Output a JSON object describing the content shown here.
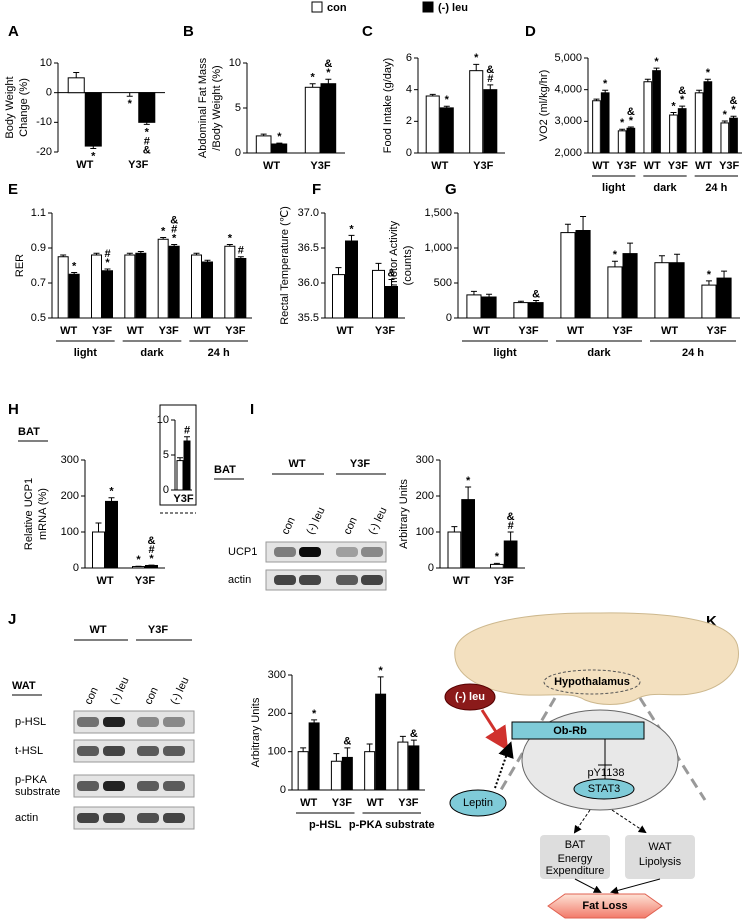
{
  "legend": [
    {
      "name": "con",
      "color": "#ffffff"
    },
    {
      "name": "(-) leu",
      "color": "#000000"
    }
  ],
  "chart_data": [
    {
      "type": "bar",
      "panel": "A",
      "ylabel": [
        "Body  Weight",
        "Change (%)"
      ],
      "categories": [
        "WT",
        "Y3F"
      ],
      "ylim": [
        -20,
        10
      ],
      "yticks": [
        -20,
        -10,
        0,
        10
      ],
      "series": [
        {
          "values": [
            5,
            0
          ],
          "errors": [
            1.8,
            1.2
          ],
          "annotations": [
            null,
            [
              "*"
            ]
          ]
        },
        {
          "values": [
            -18,
            -10
          ],
          "errors": [
            0.8,
            0.7
          ],
          "annotations": [
            [
              "*"
            ],
            [
              "*",
              "#",
              "&"
            ]
          ]
        }
      ]
    },
    {
      "type": "bar",
      "panel": "B",
      "ylabel": [
        "Abdominal Fat Mass",
        "/Body Weight (%)"
      ],
      "categories": [
        "WT",
        "Y3F"
      ],
      "ylim": [
        0,
        10
      ],
      "yticks": [
        0,
        5,
        10
      ],
      "series": [
        {
          "values": [
            1.9,
            7.3
          ],
          "errors": [
            0.2,
            0.4
          ],
          "annotations": [
            null,
            [
              "*"
            ]
          ]
        },
        {
          "values": [
            1.0,
            7.7
          ],
          "errors": [
            0.1,
            0.5
          ],
          "annotations": [
            [
              "*"
            ],
            [
              "&",
              "*"
            ]
          ]
        }
      ]
    },
    {
      "type": "bar",
      "panel": "C",
      "ylabel": [
        "Food Intake (g/day)"
      ],
      "categories": [
        "WT",
        "Y3F"
      ],
      "ylim": [
        0,
        6
      ],
      "yticks": [
        0,
        2,
        4,
        6
      ],
      "series": [
        {
          "values": [
            3.6,
            5.2
          ],
          "errors": [
            0.1,
            0.4
          ],
          "annotations": [
            null,
            [
              "*"
            ]
          ]
        },
        {
          "values": [
            2.85,
            4.0
          ],
          "errors": [
            0.1,
            0.3
          ],
          "annotations": [
            [
              "*"
            ],
            [
              "&",
              "#"
            ]
          ]
        }
      ]
    },
    {
      "type": "bar",
      "panel": "D",
      "ylabel": [
        "VO2 (ml/kg/hr)"
      ],
      "categories": [
        "WT",
        "Y3F",
        "WT",
        "Y3F",
        "WT",
        "Y3F"
      ],
      "groups": [
        "light",
        "dark",
        "24 h"
      ],
      "ylim": [
        2000,
        5000
      ],
      "yticks": [
        {
          "value": 2000,
          "label": "2,000"
        },
        {
          "value": 3000,
          "label": "3,000"
        },
        {
          "value": 4000,
          "label": "4,000"
        },
        {
          "value": 5000,
          "label": "5,000"
        }
      ],
      "series": [
        {
          "values": [
            3650,
            2700,
            4250,
            3200,
            3900,
            2950
          ],
          "errors": [
            50,
            50,
            80,
            80,
            80,
            60
          ],
          "annotations": [
            null,
            [
              "*"
            ],
            null,
            [
              "*"
            ],
            null,
            [
              "*"
            ]
          ]
        },
        {
          "values": [
            3900,
            2780,
            4600,
            3400,
            4250,
            3100
          ],
          "errors": [
            80,
            40,
            80,
            80,
            80,
            60
          ],
          "annotations": [
            [
              "*"
            ],
            [
              "&",
              "*"
            ],
            [
              "*"
            ],
            [
              "&",
              "*"
            ],
            [
              "*"
            ],
            [
              "&",
              "*"
            ]
          ]
        }
      ]
    },
    {
      "type": "bar",
      "panel": "E",
      "ylabel": [
        "RER"
      ],
      "categories": [
        "WT",
        "Y3F",
        "WT",
        "Y3F",
        "WT",
        "Y3F"
      ],
      "groups": [
        "light",
        "dark",
        "24 h"
      ],
      "ylim": [
        0.5,
        1.1
      ],
      "yticks": [
        0.5,
        0.7,
        0.9,
        1.1
      ],
      "series": [
        {
          "values": [
            0.85,
            0.86,
            0.86,
            0.95,
            0.86,
            0.91
          ],
          "errors": [
            0.01,
            0.01,
            0.01,
            0.01,
            0.01,
            0.01
          ],
          "annotations": [
            null,
            null,
            null,
            [
              "*"
            ],
            null,
            [
              "*"
            ]
          ]
        },
        {
          "values": [
            0.75,
            0.77,
            0.87,
            0.91,
            0.82,
            0.84
          ],
          "errors": [
            0.01,
            0.01,
            0.01,
            0.01,
            0.01,
            0.01
          ],
          "annotations": [
            [
              "*"
            ],
            [
              "#",
              "*"
            ],
            null,
            [
              "&",
              "#",
              "*"
            ],
            null,
            [
              "#"
            ]
          ]
        }
      ]
    },
    {
      "type": "bar",
      "panel": "F",
      "ylabel": [
        "Rectal Temperature (℃)"
      ],
      "categories": [
        "WT",
        "Y3F"
      ],
      "ylim": [
        35.5,
        37.0
      ],
      "yticks": [
        35.5,
        {
          "value": 36,
          "label": "36.0"
        },
        36.5,
        {
          "value": 37,
          "label": "37.0"
        }
      ],
      "series": [
        {
          "values": [
            36.12,
            36.18
          ],
          "errors": [
            0.1,
            0.1
          ],
          "annotations": [
            null,
            null
          ]
        },
        {
          "values": [
            36.6,
            35.95
          ],
          "errors": [
            0.08,
            0.1
          ],
          "annotations": [
            [
              "*"
            ],
            [
              "&"
            ]
          ]
        }
      ]
    },
    {
      "type": "bar",
      "panel": "G",
      "ylabel": [
        "Locomotor Activity",
        "(counts)"
      ],
      "categories": [
        "WT",
        "Y3F",
        "WT",
        "Y3F",
        "WT",
        "Y3F"
      ],
      "groups": [
        "light",
        "dark",
        "24 h"
      ],
      "ylim": [
        0,
        1500
      ],
      "yticks": [
        0,
        500,
        {
          "value": 1000,
          "label": "1,000"
        },
        {
          "value": 1500,
          "label": "1,500"
        }
      ],
      "series": [
        {
          "values": [
            330,
            220,
            1220,
            730,
            790,
            470
          ],
          "errors": [
            50,
            20,
            120,
            80,
            100,
            60
          ],
          "annotations": [
            null,
            null,
            null,
            [
              "*"
            ],
            null,
            [
              "*"
            ]
          ]
        },
        {
          "values": [
            300,
            220,
            1250,
            920,
            790,
            570
          ],
          "errors": [
            40,
            30,
            200,
            150,
            120,
            100
          ],
          "annotations": [
            null,
            [
              "&"
            ],
            null,
            null,
            null,
            null
          ]
        }
      ]
    },
    {
      "type": "bar",
      "panel": "H",
      "tissue": "BAT",
      "ylabel": [
        "Relative UCP1",
        "mRNA (%)"
      ],
      "categories": [
        "WT",
        "Y3F"
      ],
      "ylim": [
        0,
        300
      ],
      "yticks": [
        0,
        100,
        200,
        300
      ],
      "series": [
        {
          "values": [
            100,
            4
          ],
          "errors": [
            25,
            1
          ],
          "annotations": [
            null,
            [
              "*"
            ]
          ]
        },
        {
          "values": [
            185,
            7
          ],
          "errors": [
            10,
            1
          ],
          "annotations": [
            [
              "*"
            ],
            [
              "&",
              "#",
              "*"
            ]
          ]
        }
      ]
    },
    {
      "type": "bar",
      "categories": [
        "Y3F"
      ],
      "ylim": [
        0,
        10
      ],
      "yticks": [
        0,
        5,
        10
      ],
      "series": [
        {
          "values": [
            4.2
          ],
          "errors": [
            0.4
          ],
          "annotations": [
            null
          ]
        },
        {
          "values": [
            7
          ],
          "errors": [
            0.6
          ],
          "annotations": [
            [
              "#"
            ]
          ]
        }
      ]
    },
    {
      "type": "bar",
      "panel": "I",
      "ylabel": [
        "Arbitrary Units"
      ],
      "categories": [
        "WT",
        "Y3F"
      ],
      "ylim": [
        0,
        300
      ],
      "yticks": [
        0,
        100,
        200,
        300
      ],
      "series": [
        {
          "values": [
            100,
            10
          ],
          "errors": [
            15,
            3
          ],
          "annotations": [
            null,
            [
              "*"
            ]
          ]
        },
        {
          "values": [
            190,
            75
          ],
          "errors": [
            35,
            25
          ],
          "annotations": [
            [
              "*"
            ],
            [
              "&",
              "#"
            ]
          ]
        }
      ]
    },
    {
      "type": "bar",
      "panel": "J",
      "ylabel": [
        "Arbitrary Units"
      ],
      "categories": [
        "WT",
        "Y3F",
        "WT",
        "Y3F"
      ],
      "groups": [
        "p-HSL",
        "p-PKA substrate"
      ],
      "ylim": [
        0,
        300
      ],
      "yticks": [
        0,
        100,
        200,
        300
      ],
      "series": [
        {
          "values": [
            100,
            75,
            100,
            125
          ],
          "errors": [
            10,
            20,
            20,
            15
          ],
          "annotations": [
            null,
            null,
            null,
            null
          ]
        },
        {
          "values": [
            175,
            85,
            250,
            115
          ],
          "errors": [
            8,
            25,
            45,
            15
          ],
          "annotations": [
            [
              "*"
            ],
            [
              "&"
            ],
            [
              "*"
            ],
            [
              "&"
            ]
          ]
        }
      ]
    }
  ],
  "blots": [
    {
      "tissue": "BAT",
      "groups": [
        "WT",
        "Y3F"
      ],
      "lanes": [
        "con",
        "(-) leu",
        "con",
        "(-) leu"
      ],
      "rows": [
        [
          "UCP1"
        ],
        [
          "actin"
        ]
      ]
    },
    {
      "tissue": "WAT",
      "groups": [
        "WT",
        "Y3F"
      ],
      "lanes": [
        "con",
        "(-) leu",
        "con",
        "(-) leu"
      ],
      "rows": [
        [
          "p-HSL"
        ],
        [
          "t-HSL"
        ],
        [
          "p-PKA",
          "substrate"
        ],
        [
          "actin"
        ]
      ]
    }
  ],
  "diagram": {
    "panel": "K",
    "region": "Hypothalamus",
    "treatment": "(-) leu",
    "receptor": "Ob-Rb",
    "site": "pY1138",
    "factor": "STAT3",
    "ligand": "Leptin",
    "outputs": [
      [
        "BAT",
        "Energy",
        "Expenditure"
      ],
      [
        "WAT",
        "Lipolysis"
      ]
    ],
    "result": "Fat Loss"
  }
}
